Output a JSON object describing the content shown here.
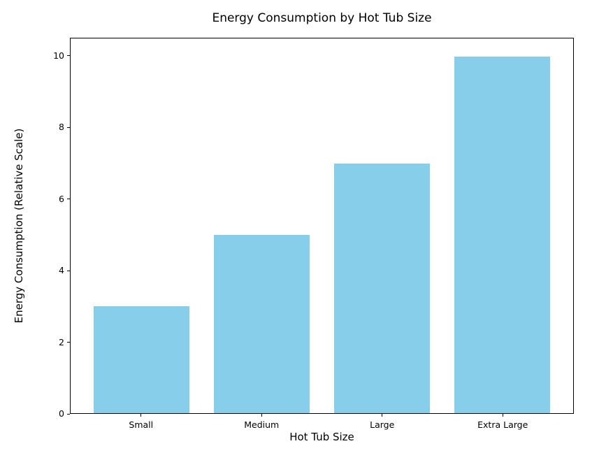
{
  "chart_data": {
    "type": "bar",
    "title": "Energy Consumption by Hot Tub Size",
    "xlabel": "Hot Tub Size",
    "ylabel": "Energy Consumption (Relative Scale)",
    "categories": [
      "Small",
      "Medium",
      "Large",
      "Extra Large"
    ],
    "values": [
      3,
      5,
      7,
      10
    ],
    "yticks": [
      0,
      2,
      4,
      6,
      8,
      10
    ],
    "ylim": [
      0,
      10.5
    ],
    "bar_color": "#87CEEB",
    "axis_color": "#000000",
    "background_color": "#FFFFFF",
    "grid": false,
    "legend_position": "none"
  }
}
